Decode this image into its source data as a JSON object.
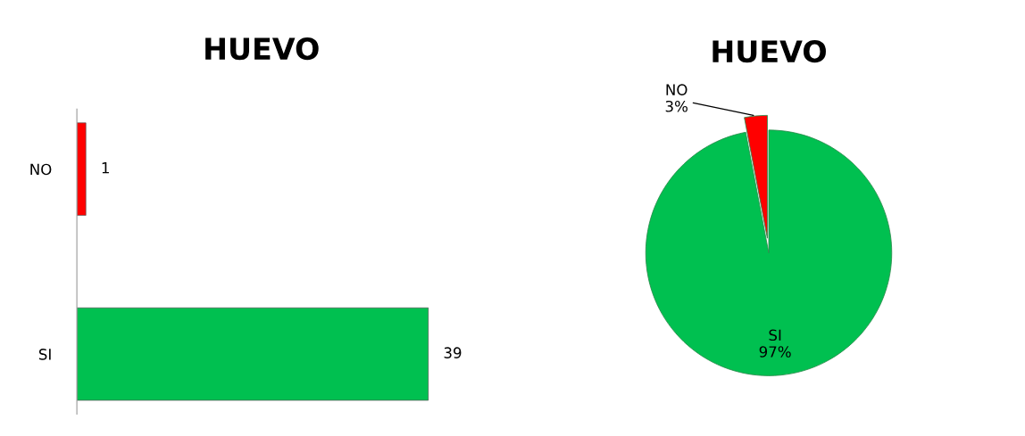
{
  "chart_data": [
    {
      "type": "bar",
      "title": "HUEVO",
      "orientation": "horizontal",
      "categories": [
        "NO",
        "SI"
      ],
      "values": [
        1,
        39
      ],
      "colors": [
        "#ff0000",
        "#00c050"
      ],
      "data_labels": true,
      "tick_labels": "y",
      "grid": false,
      "legend": false
    },
    {
      "type": "pie",
      "title": "HUEVO",
      "categories": [
        "NO",
        "SI"
      ],
      "values": [
        3,
        97
      ],
      "value_labels": [
        "3%",
        "97%"
      ],
      "colors": [
        "#ff0000",
        "#00c050"
      ],
      "legend": false
    }
  ]
}
